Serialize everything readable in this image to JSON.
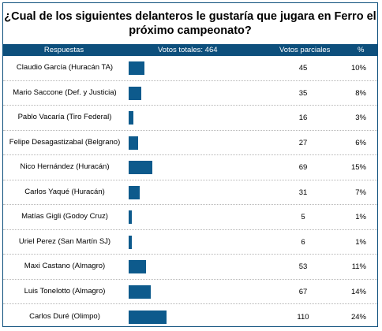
{
  "question": "¿Cual de los siguientes delanteros le gustaría que jugara en Ferro el próximo campeonato?",
  "header": {
    "respuestas": "Respuestas",
    "votos_totales": "Votos totales: 464",
    "votos_parciales": "Votos parciales",
    "pct": "%"
  },
  "bar_color": "#0d5a8c",
  "rows": [
    {
      "name": "Claudio García (Huracán TA)",
      "votes": "45",
      "pct": "10%",
      "share": 0.1
    },
    {
      "name": "Mario Saccone (Def. y Justicia)",
      "votes": "35",
      "pct": "8%",
      "share": 0.08
    },
    {
      "name": "Pablo Vacaría (Tiro Federal)",
      "votes": "16",
      "pct": "3%",
      "share": 0.03
    },
    {
      "name": "Felipe Desagastizabal (Belgrano)",
      "votes": "27",
      "pct": "6%",
      "share": 0.06
    },
    {
      "name": "Nico Hernández (Huracán)",
      "votes": "69",
      "pct": "15%",
      "share": 0.15
    },
    {
      "name": "Carlos Yaqué (Huracán)",
      "votes": "31",
      "pct": "7%",
      "share": 0.07
    },
    {
      "name": "Matías Gigli (Godoy Cruz)",
      "votes": "5",
      "pct": "1%",
      "share": 0.01
    },
    {
      "name": "Uriel Perez (San Martín SJ)",
      "votes": "6",
      "pct": "1%",
      "share": 0.01
    },
    {
      "name": "Maxi Castano (Almagro)",
      "votes": "53",
      "pct": "11%",
      "share": 0.11
    },
    {
      "name": "Luis Tonelotto (Almagro)",
      "votes": "67",
      "pct": "14%",
      "share": 0.14
    },
    {
      "name": "Carlos Duré (Olimpo)",
      "votes": "110",
      "pct": "24%",
      "share": 0.24
    }
  ]
}
